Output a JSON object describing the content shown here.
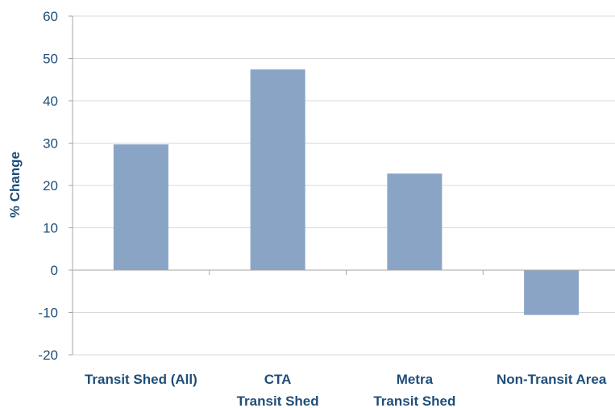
{
  "chart_data": {
    "type": "bar",
    "categories": [
      [
        "Transit Shed (All)"
      ],
      [
        "CTA",
        "Transit Shed"
      ],
      [
        "Metra",
        "Transit Shed"
      ],
      [
        "Non-Transit Area"
      ]
    ],
    "values": [
      29.7,
      47.4,
      22.8,
      -10.6
    ],
    "title": "",
    "xlabel": "",
    "ylabel": "% Change",
    "ylim": [
      -20,
      60
    ],
    "yticks": [
      60,
      50,
      40,
      30,
      20,
      10,
      0,
      -10,
      -20
    ],
    "grid": true,
    "legend": "none",
    "colors": {
      "bar": "#8aa4c6",
      "grid": "#d9d9d9",
      "axis": "#a6a6a6",
      "text": "#1f4e79"
    }
  }
}
